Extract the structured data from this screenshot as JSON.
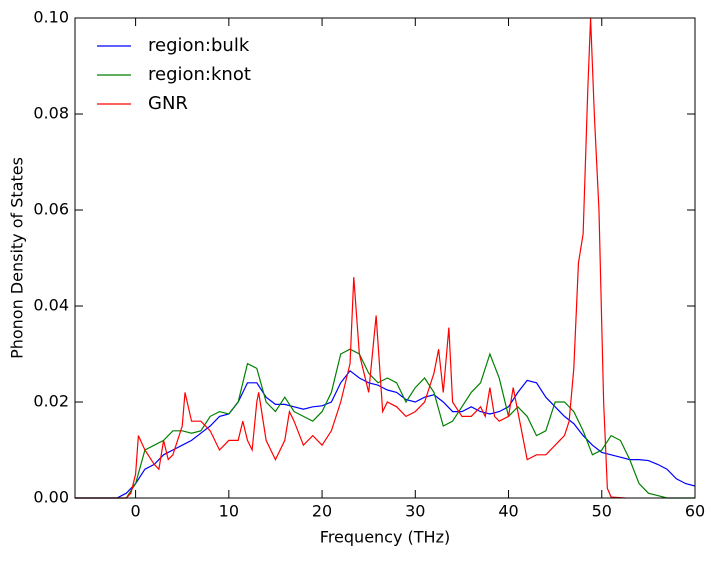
{
  "chart_data": {
    "type": "line",
    "x_label": "Frequency (THz)",
    "y_label": "Phonon Density of States",
    "xlim": [
      -6.5,
      60
    ],
    "ylim": [
      0,
      0.1
    ],
    "xticks": [
      0,
      10,
      20,
      30,
      40,
      50,
      60
    ],
    "yticks": [
      {
        "value": 0,
        "label": "0.00"
      },
      {
        "value": 0.02,
        "label": "0.02"
      },
      {
        "value": 0.04,
        "label": "0.04"
      },
      {
        "value": 0.06,
        "label": "0.06"
      },
      {
        "value": 0.08,
        "label": "0.08"
      },
      {
        "value": 0.1,
        "label": "0.10"
      }
    ],
    "legend": "upper left",
    "series": [
      {
        "name": "region:bulk",
        "color": "#0000ff",
        "x": [
          -6.5,
          -2,
          -1,
          0,
          1,
          2,
          3,
          4,
          5,
          6,
          7,
          8,
          9,
          10,
          11,
          12,
          13,
          14,
          15,
          16,
          17,
          18,
          19,
          20,
          21,
          22,
          23,
          24,
          25,
          26,
          27,
          28,
          29,
          30,
          31,
          32,
          33,
          34,
          35,
          36,
          37,
          38,
          39,
          40,
          41,
          42,
          43,
          44,
          45,
          46,
          47,
          48,
          49,
          50,
          51,
          52,
          53,
          54,
          55,
          56,
          57,
          58,
          59,
          60
        ],
        "values": [
          0,
          0,
          0.001,
          0.003,
          0.006,
          0.007,
          0.009,
          0.01,
          0.011,
          0.012,
          0.0135,
          0.015,
          0.017,
          0.0175,
          0.02,
          0.024,
          0.024,
          0.021,
          0.0195,
          0.0195,
          0.019,
          0.0185,
          0.019,
          0.0192,
          0.02,
          0.024,
          0.0265,
          0.025,
          0.024,
          0.0235,
          0.0225,
          0.022,
          0.0205,
          0.02,
          0.021,
          0.0215,
          0.02,
          0.018,
          0.018,
          0.019,
          0.018,
          0.0175,
          0.018,
          0.019,
          0.022,
          0.0245,
          0.024,
          0.021,
          0.019,
          0.017,
          0.0155,
          0.013,
          0.011,
          0.0095,
          0.009,
          0.0085,
          0.008,
          0.008,
          0.0078,
          0.007,
          0.006,
          0.004,
          0.003,
          0.0025
        ]
      },
      {
        "name": "region:knot",
        "color": "#008000",
        "x": [
          -6.5,
          -2,
          -1,
          0,
          1,
          2,
          3,
          4,
          5,
          6,
          7,
          8,
          9,
          10,
          11,
          12,
          13,
          14,
          15,
          16,
          17,
          18,
          19,
          20,
          21,
          22,
          23,
          24,
          25,
          26,
          27,
          28,
          29,
          30,
          31,
          32,
          33,
          34,
          35,
          36,
          37,
          38,
          39,
          40,
          41,
          42,
          43,
          44,
          45,
          46,
          47,
          48,
          49,
          50,
          51,
          52,
          53,
          54,
          55,
          56,
          57,
          60
        ],
        "values": [
          0,
          0,
          0,
          0.003,
          0.01,
          0.011,
          0.012,
          0.014,
          0.014,
          0.0135,
          0.014,
          0.017,
          0.018,
          0.0175,
          0.02,
          0.028,
          0.027,
          0.02,
          0.018,
          0.021,
          0.018,
          0.017,
          0.016,
          0.018,
          0.022,
          0.03,
          0.031,
          0.03,
          0.026,
          0.024,
          0.025,
          0.024,
          0.02,
          0.023,
          0.025,
          0.022,
          0.015,
          0.016,
          0.019,
          0.022,
          0.024,
          0.03,
          0.025,
          0.017,
          0.019,
          0.017,
          0.013,
          0.014,
          0.02,
          0.02,
          0.018,
          0.014,
          0.009,
          0.01,
          0.013,
          0.012,
          0.008,
          0.003,
          0.001,
          0.0005,
          0,
          0
        ]
      },
      {
        "name": "GNR",
        "color": "#ff0000",
        "x": [
          -6.5,
          -1,
          -0.5,
          0,
          0.3,
          1,
          2,
          2.5,
          3,
          3.5,
          4,
          5,
          5.3,
          6,
          7,
          8,
          9,
          10,
          11,
          11.5,
          12,
          12.5,
          13,
          13.2,
          14,
          15,
          16,
          16.5,
          17,
          18,
          19,
          20,
          21,
          22,
          23,
          23.4,
          24,
          25,
          25.8,
          26.5,
          27,
          28,
          29,
          30,
          31,
          32,
          32.5,
          33,
          33.6,
          34,
          35,
          36,
          37,
          37.5,
          38,
          38.5,
          39,
          40,
          40.5,
          41,
          42,
          43,
          44,
          45,
          46,
          46.5,
          47,
          47.5,
          48,
          48.5,
          48.8,
          49.2,
          49.7,
          50.2,
          50.6,
          51,
          52.5
        ],
        "values": [
          0,
          0,
          0.001,
          0.005,
          0.013,
          0.01,
          0.007,
          0.006,
          0.012,
          0.008,
          0.009,
          0.015,
          0.022,
          0.016,
          0.016,
          0.014,
          0.01,
          0.012,
          0.012,
          0.016,
          0.012,
          0.01,
          0.02,
          0.022,
          0.012,
          0.008,
          0.012,
          0.018,
          0.016,
          0.011,
          0.013,
          0.011,
          0.014,
          0.02,
          0.028,
          0.046,
          0.03,
          0.022,
          0.038,
          0.018,
          0.02,
          0.019,
          0.017,
          0.018,
          0.02,
          0.026,
          0.031,
          0.022,
          0.0355,
          0.02,
          0.017,
          0.017,
          0.019,
          0.017,
          0.023,
          0.017,
          0.016,
          0.017,
          0.023,
          0.018,
          0.008,
          0.009,
          0.009,
          0.011,
          0.013,
          0.016,
          0.027,
          0.049,
          0.055,
          0.085,
          0.1,
          0.08,
          0.06,
          0.02,
          0.002,
          0.0002,
          0
        ]
      }
    ]
  }
}
